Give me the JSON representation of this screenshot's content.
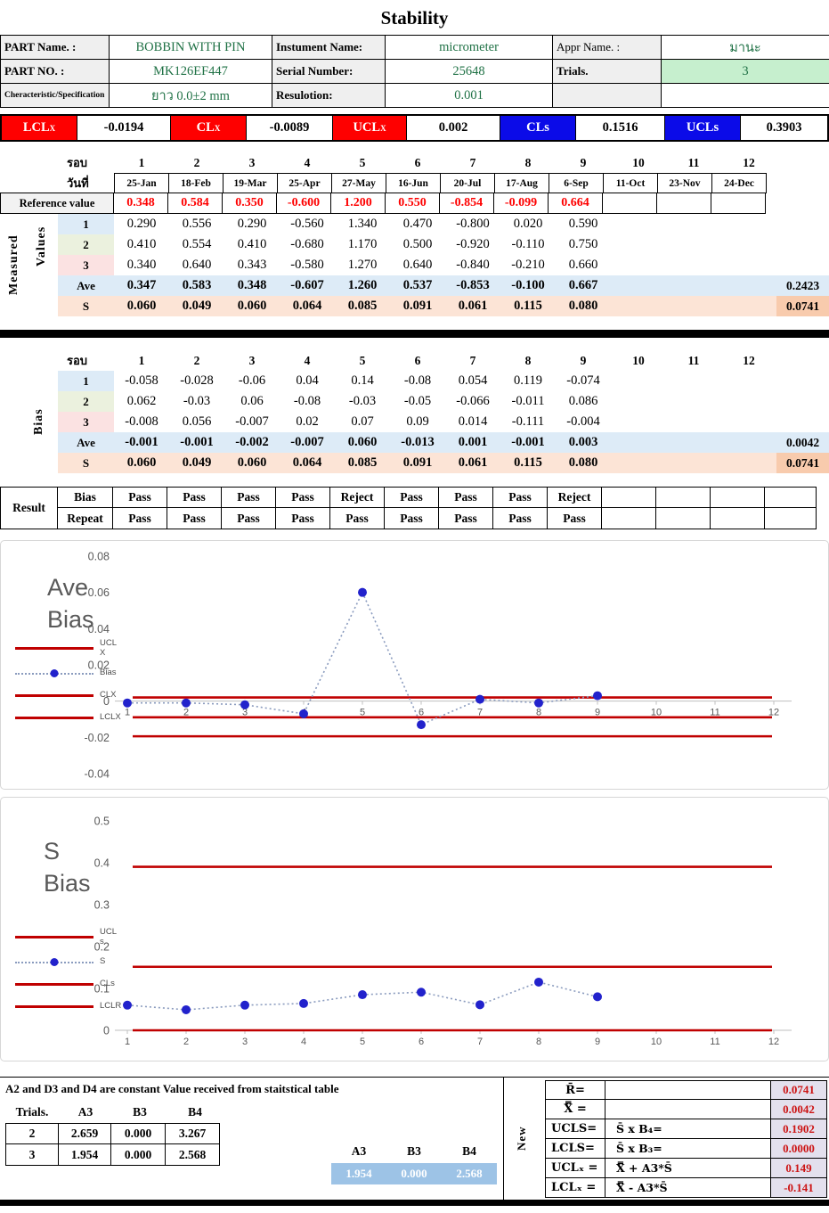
{
  "title": "Stability",
  "info": {
    "rows": [
      {
        "l1": "PART  Name. :",
        "v1": "BOBBIN WITH PIN",
        "l2": "Instument Name:",
        "v2": "micrometer",
        "l3": "Appr Name. :",
        "v3": "มานะ"
      },
      {
        "l1": "PART  NO. :",
        "v1": "MK126EF447",
        "l2": "Serial Number:",
        "v2": "25648",
        "l3": "Trials.",
        "v3": "3"
      },
      {
        "l1": "Cheracteristic/Specification",
        "v1": "ยาว  0.0±2 mm",
        "l2": "Resulotion:",
        "v2": "0.001",
        "l3": "",
        "v3": ""
      }
    ]
  },
  "limits": [
    {
      "base": "LCL",
      "sub": "X",
      "value": "-0.0194",
      "color": "#FE0000"
    },
    {
      "base": "CL",
      "sub": "X",
      "value": "-0.0089",
      "color": "#FE0000"
    },
    {
      "base": "UCL",
      "sub": "X",
      "value": "0.002",
      "color": "#FE0000"
    },
    {
      "base": "CLs",
      "sub": "",
      "value": "0.1516",
      "color": "#0B0BE8"
    },
    {
      "base": "UCLs",
      "sub": "",
      "value": "0.3903",
      "color": "#0B0BE8"
    }
  ],
  "measured": {
    "section_label_1": "Measured",
    "section_label_2": "Values",
    "round_label": "รอบ",
    "date_label": "วันที่",
    "rounds": [
      "1",
      "2",
      "3",
      "4",
      "5",
      "6",
      "7",
      "8",
      "9",
      "10",
      "11",
      "12"
    ],
    "dates": [
      "25-Jan",
      "18-Feb",
      "19-Mar",
      "25-Apr",
      "27-May",
      "16-Jun",
      "20-Jul",
      "17-Aug",
      "6-Sep",
      "11-Oct",
      "23-Nov",
      "24-Dec"
    ],
    "reference_label": "Reference value",
    "reference": [
      "0.348",
      "0.584",
      "0.350",
      "-0.600",
      "1.200",
      "0.550",
      "-0.854",
      "-0.099",
      "0.664"
    ],
    "trials": [
      {
        "label": "1",
        "values": [
          "0.290",
          "0.556",
          "0.290",
          "-0.560",
          "1.340",
          "0.470",
          "-0.800",
          "0.020",
          "0.590"
        ]
      },
      {
        "label": "2",
        "values": [
          "0.410",
          "0.554",
          "0.410",
          "-0.680",
          "1.170",
          "0.500",
          "-0.920",
          "-0.110",
          "0.750"
        ]
      },
      {
        "label": "3",
        "values": [
          "0.340",
          "0.640",
          "0.343",
          "-0.580",
          "1.270",
          "0.640",
          "-0.840",
          "-0.210",
          "0.660"
        ]
      }
    ],
    "ave": {
      "label": "Ave",
      "values": [
        "0.347",
        "0.583",
        "0.348",
        "-0.607",
        "1.260",
        "0.537",
        "-0.853",
        "-0.100",
        "0.667"
      ],
      "summary": "0.2423"
    },
    "s": {
      "label": "S",
      "values": [
        "0.060",
        "0.049",
        "0.060",
        "0.064",
        "0.085",
        "0.091",
        "0.061",
        "0.115",
        "0.080"
      ],
      "summary": "0.0741"
    }
  },
  "bias": {
    "section_label": "Bias",
    "round_label": "รอบ",
    "rounds": [
      "1",
      "2",
      "3",
      "4",
      "5",
      "6",
      "7",
      "8",
      "9",
      "10",
      "11",
      "12"
    ],
    "trials": [
      {
        "label": "1",
        "values": [
          "-0.058",
          "-0.028",
          "-0.06",
          "0.04",
          "0.14",
          "-0.08",
          "0.054",
          "0.119",
          "-0.074"
        ]
      },
      {
        "label": "2",
        "values": [
          "0.062",
          "-0.03",
          "0.06",
          "-0.08",
          "-0.03",
          "-0.05",
          "-0.066",
          "-0.011",
          "0.086"
        ]
      },
      {
        "label": "3",
        "values": [
          "-0.008",
          "0.056",
          "-0.007",
          "0.02",
          "0.07",
          "0.09",
          "0.014",
          "-0.111",
          "-0.004"
        ]
      }
    ],
    "ave": {
      "label": "Ave",
      "values": [
        "-0.001",
        "-0.001",
        "-0.002",
        "-0.007",
        "0.060",
        "-0.013",
        "0.001",
        "-0.001",
        "0.003"
      ],
      "summary": "0.0042"
    },
    "s": {
      "label": "S",
      "values": [
        "0.060",
        "0.049",
        "0.060",
        "0.064",
        "0.085",
        "0.091",
        "0.061",
        "0.115",
        "0.080"
      ],
      "summary": "0.0741"
    }
  },
  "result": {
    "label": "Result",
    "rows": [
      {
        "label": "Bias",
        "values": [
          "Pass",
          "Pass",
          "Pass",
          "Pass",
          "Reject",
          "Pass",
          "Pass",
          "Pass",
          "Reject",
          "",
          "",
          ""
        ]
      },
      {
        "label": "Repeat",
        "values": [
          "Pass",
          "Pass",
          "Pass",
          "Pass",
          "Pass",
          "Pass",
          "Pass",
          "Pass",
          "Pass",
          "",
          "",
          ""
        ]
      }
    ]
  },
  "chart_data": [
    {
      "type": "line",
      "title": "Ave Bias",
      "title_lines": [
        "Ave",
        "Bias"
      ],
      "x": [
        1,
        2,
        3,
        4,
        5,
        6,
        7,
        8,
        9
      ],
      "series": [
        {
          "name": "Bias",
          "values": [
            -0.001,
            -0.001,
            -0.002,
            -0.007,
            0.06,
            -0.013,
            0.001,
            -0.001,
            0.003
          ]
        }
      ],
      "ref_lines": [
        {
          "name": "UCL X",
          "value": 0.002
        },
        {
          "name": "CLX",
          "value": -0.0089
        },
        {
          "name": "LCLX",
          "value": -0.0194
        }
      ],
      "ylim": [
        -0.04,
        0.08
      ],
      "ytick_step": 0.02,
      "xlim": [
        1,
        12
      ],
      "xticks": [
        1,
        2,
        3,
        4,
        5,
        6,
        7,
        8,
        9,
        10,
        11,
        12
      ],
      "grid": false,
      "legend_position": "left",
      "legend": [
        {
          "lines": [
            "UCL",
            "X"
          ],
          "style": "refline"
        },
        {
          "lines": [
            "Bias"
          ],
          "style": "series"
        },
        {
          "lines": [
            "CLX"
          ],
          "style": "refline"
        },
        {
          "lines": [
            "LCLX"
          ],
          "style": "refline"
        }
      ],
      "line_color": "#C00000",
      "marker_color": "#2222CC",
      "series_color": "#8A9BBE"
    },
    {
      "type": "line",
      "title": "S Bias",
      "title_lines": [
        "S",
        "Bias"
      ],
      "x": [
        1,
        2,
        3,
        4,
        5,
        6,
        7,
        8,
        9
      ],
      "series": [
        {
          "name": "S",
          "values": [
            0.06,
            0.049,
            0.06,
            0.064,
            0.085,
            0.091,
            0.061,
            0.115,
            0.08
          ]
        }
      ],
      "ref_lines": [
        {
          "name": "UCL s",
          "value": 0.3903
        },
        {
          "name": "CLs",
          "value": 0.1516
        },
        {
          "name": "LCLR",
          "value": 0
        }
      ],
      "ylim": [
        0,
        0.5
      ],
      "ytick_step": 0.1,
      "xlim": [
        1,
        12
      ],
      "xticks": [
        1,
        2,
        3,
        4,
        5,
        6,
        7,
        8,
        9,
        10,
        11,
        12
      ],
      "grid": false,
      "legend_position": "left",
      "legend": [
        {
          "lines": [
            "UCL",
            "s"
          ],
          "style": "refline"
        },
        {
          "lines": [
            "S"
          ],
          "style": "series"
        },
        {
          "lines": [
            "CLs"
          ],
          "style": "refline"
        },
        {
          "lines": [
            "LCLR"
          ],
          "style": "refline"
        }
      ],
      "line_color": "#C00000",
      "marker_color": "#2222CC",
      "series_color": "#8A9BBE"
    }
  ],
  "constants": {
    "note": "A2 and D3 and D4 are constant Value received from staitstical table",
    "headers": [
      "Trials.",
      "A3",
      "B3",
      "B4"
    ],
    "rows": [
      [
        "2",
        "2.659",
        "0.000",
        "3.267"
      ],
      [
        "3",
        "1.954",
        "0.000",
        "2.568"
      ]
    ],
    "selected_headers": [
      "A3",
      "B3",
      "B4"
    ],
    "selected_values": [
      "1.954",
      "0.000",
      "2.568"
    ]
  },
  "new_calc": {
    "label": "New",
    "rows": [
      {
        "name": "R̄=",
        "formula": "",
        "value": "0.0741"
      },
      {
        "name": "X̿ =",
        "formula": "",
        "value": "0.0042"
      },
      {
        "name": "UCLS=",
        "formula": "S̄ x B₄=",
        "value": "0.1902"
      },
      {
        "name": "LCLS=",
        "formula": "S̄ x B₃=",
        "value": "0.0000"
      },
      {
        "name": "UCLₓ =",
        "formula": "X̿ + A3*S̄",
        "value": "0.149"
      },
      {
        "name": "LCLₓ =",
        "formula": "X̿ - A3*S̄",
        "value": "-0.141"
      }
    ]
  }
}
